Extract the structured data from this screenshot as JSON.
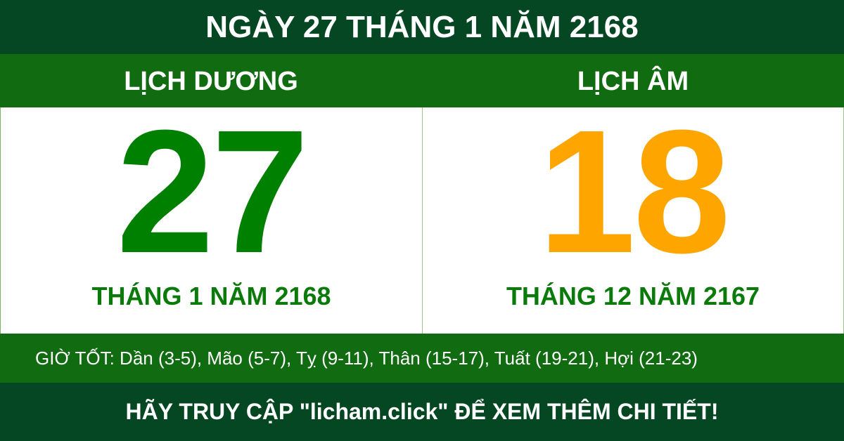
{
  "header": {
    "title": "NGÀY 27 THÁNG 1 NĂM 2168"
  },
  "solar": {
    "label": "LỊCH DƯƠNG",
    "day": "27",
    "month_year": "THÁNG 1 NĂM 2168",
    "color": "#008000"
  },
  "lunar": {
    "label": "LỊCH ÂM",
    "day": "18",
    "month_year": "THÁNG 12 NĂM 2167",
    "color": "#ffa500"
  },
  "good_hours": "GIỜ TỐT: Dần (3-5), Mão (5-7), Tỵ (9-11), Thân (15-17), Tuất (19-21), Hợi (21-23)",
  "footer": {
    "cta": "HÃY TRUY CẬP \"licham.click\" ĐỂ XEM THÊM CHI TIẾT!"
  },
  "colors": {
    "dark_green": "#044722",
    "green": "#116b11"
  }
}
